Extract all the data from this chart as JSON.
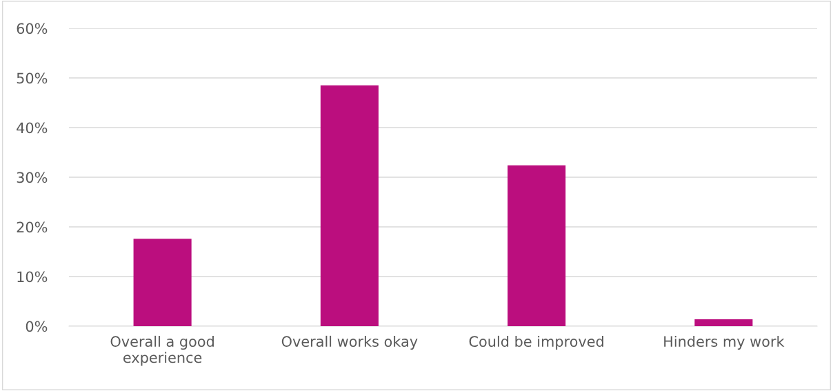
{
  "chart_data": {
    "type": "bar",
    "categories": [
      "Overall a good experience",
      "Overall works okay",
      "Could be improved",
      "Hinders my work"
    ],
    "values": [
      17.6,
      48.5,
      32.4,
      1.4
    ],
    "color": "#bb0e7e",
    "ylim": [
      0,
      60
    ],
    "yticks": [
      {
        "value": 0,
        "label": "0%"
      },
      {
        "value": 10,
        "label": "10%"
      },
      {
        "value": 20,
        "label": "20%"
      },
      {
        "value": 30,
        "label": "30%"
      },
      {
        "value": 40,
        "label": "40%"
      },
      {
        "value": 50,
        "label": "50%"
      },
      {
        "value": 60,
        "label": "60%"
      }
    ],
    "grid": "y",
    "legend": false
  }
}
